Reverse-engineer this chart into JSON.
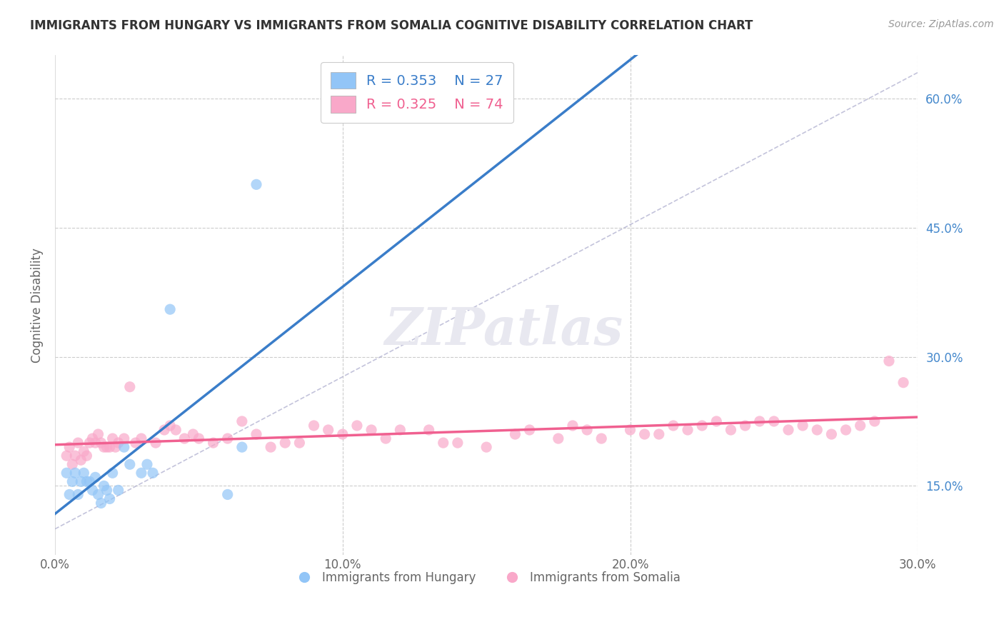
{
  "title": "IMMIGRANTS FROM HUNGARY VS IMMIGRANTS FROM SOMALIA COGNITIVE DISABILITY CORRELATION CHART",
  "source": "Source: ZipAtlas.com",
  "ylabel": "Cognitive Disability",
  "xlim": [
    0.0,
    0.3
  ],
  "ylim": [
    0.07,
    0.65
  ],
  "ytick_labels": [
    "15.0%",
    "30.0%",
    "45.0%",
    "60.0%"
  ],
  "ytick_values": [
    0.15,
    0.3,
    0.45,
    0.6
  ],
  "xtick_labels": [
    "0.0%",
    "10.0%",
    "20.0%",
    "30.0%"
  ],
  "xtick_values": [
    0.0,
    0.1,
    0.2,
    0.3
  ],
  "legend_labels": [
    "Immigrants from Hungary",
    "Immigrants from Somalia"
  ],
  "legend_r": [
    0.353,
    0.325
  ],
  "legend_n": [
    27,
    74
  ],
  "hungary_color": "#92C5F7",
  "somalia_color": "#F9A8C9",
  "hungary_line_color": "#3A7DC9",
  "somalia_line_color": "#F06090",
  "diagonal_color": "#AAAACC",
  "hungary_points_x": [
    0.004,
    0.005,
    0.006,
    0.007,
    0.008,
    0.009,
    0.01,
    0.011,
    0.012,
    0.013,
    0.014,
    0.015,
    0.016,
    0.017,
    0.018,
    0.019,
    0.02,
    0.022,
    0.024,
    0.026,
    0.03,
    0.032,
    0.034,
    0.04,
    0.06,
    0.065,
    0.07
  ],
  "hungary_points_y": [
    0.165,
    0.14,
    0.155,
    0.165,
    0.14,
    0.155,
    0.165,
    0.155,
    0.155,
    0.145,
    0.16,
    0.14,
    0.13,
    0.15,
    0.145,
    0.135,
    0.165,
    0.145,
    0.195,
    0.175,
    0.165,
    0.175,
    0.165,
    0.355,
    0.14,
    0.195,
    0.5
  ],
  "somalia_points_x": [
    0.004,
    0.005,
    0.006,
    0.007,
    0.008,
    0.009,
    0.01,
    0.011,
    0.012,
    0.013,
    0.014,
    0.015,
    0.016,
    0.017,
    0.018,
    0.019,
    0.02,
    0.021,
    0.022,
    0.024,
    0.026,
    0.028,
    0.03,
    0.035,
    0.038,
    0.04,
    0.042,
    0.045,
    0.048,
    0.05,
    0.055,
    0.06,
    0.065,
    0.07,
    0.075,
    0.08,
    0.085,
    0.09,
    0.095,
    0.1,
    0.105,
    0.11,
    0.115,
    0.12,
    0.13,
    0.135,
    0.14,
    0.15,
    0.16,
    0.165,
    0.175,
    0.18,
    0.185,
    0.19,
    0.2,
    0.205,
    0.21,
    0.215,
    0.22,
    0.225,
    0.23,
    0.235,
    0.24,
    0.245,
    0.25,
    0.255,
    0.26,
    0.265,
    0.27,
    0.275,
    0.28,
    0.285,
    0.29,
    0.295
  ],
  "somalia_points_y": [
    0.185,
    0.195,
    0.175,
    0.185,
    0.2,
    0.18,
    0.19,
    0.185,
    0.2,
    0.205,
    0.2,
    0.21,
    0.2,
    0.195,
    0.195,
    0.195,
    0.205,
    0.195,
    0.2,
    0.205,
    0.265,
    0.2,
    0.205,
    0.2,
    0.215,
    0.22,
    0.215,
    0.205,
    0.21,
    0.205,
    0.2,
    0.205,
    0.225,
    0.21,
    0.195,
    0.2,
    0.2,
    0.22,
    0.215,
    0.21,
    0.22,
    0.215,
    0.205,
    0.215,
    0.215,
    0.2,
    0.2,
    0.195,
    0.21,
    0.215,
    0.205,
    0.22,
    0.215,
    0.205,
    0.215,
    0.21,
    0.21,
    0.22,
    0.215,
    0.22,
    0.225,
    0.215,
    0.22,
    0.225,
    0.225,
    0.215,
    0.22,
    0.215,
    0.21,
    0.215,
    0.22,
    0.225,
    0.295,
    0.27
  ]
}
